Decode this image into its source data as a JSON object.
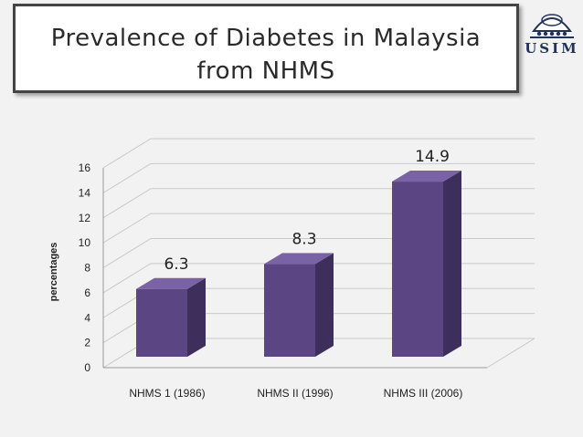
{
  "slide": {
    "title_line_1": "Prevalence of Diabetes in Malaysia",
    "title_line_2": "from NHMS",
    "logo_text": "USIM"
  },
  "chart_data": {
    "type": "bar",
    "title": "",
    "xlabel": "",
    "ylabel": "percentages",
    "categories": [
      "NHMS 1 (1986)",
      "NHMS II (1996)",
      "NHMS III (2006)"
    ],
    "values": [
      6.3,
      8.3,
      14.9
    ],
    "data_labels": [
      "6.3",
      "8.3",
      "14.9"
    ],
    "ylim": [
      0,
      16
    ],
    "yticks": [
      0,
      2,
      4,
      6,
      8,
      10,
      12,
      14,
      16
    ],
    "grid": true,
    "legend": "none",
    "style": "3d-column",
    "colors": {
      "bar_front": "#5b4582",
      "bar_side": "#3e2e5c",
      "bar_top": "#7a62a6",
      "grid": "#c9c9c9"
    }
  }
}
